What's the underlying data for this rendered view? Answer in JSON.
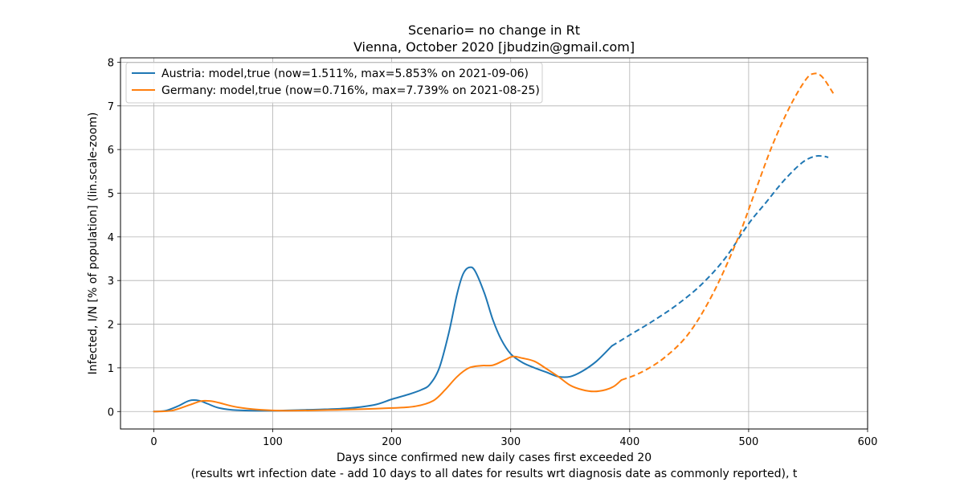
{
  "chart_data": {
    "type": "line",
    "title": "Scenario= no change in Rt",
    "subtitle": "Vienna, October 2020 [jbudzin@gmail.com]",
    "xlabel_line1": "Days since confirmed new daily cases first exceeded 20",
    "xlabel_line2": "(results wrt infection date - add 10 days to all dates for results wrt diagnosis date as commonly reported), t",
    "ylabel": "Infected, I/N [% of population] (lin.scale-zoom)",
    "xlim": [
      -28,
      600
    ],
    "ylim": [
      -0.4,
      8.1
    ],
    "xticks": [
      0,
      100,
      200,
      300,
      400,
      500,
      600
    ],
    "yticks": [
      0,
      1,
      2,
      3,
      4,
      5,
      6,
      7,
      8
    ],
    "grid": true,
    "legend_position": "top-left",
    "series": [
      {
        "name": "Austria: model,true (now=1.511%, max=5.853% on 2021-09-06)",
        "color": "#1f77b4",
        "solid": [
          [
            0,
            0
          ],
          [
            10,
            0.02
          ],
          [
            20,
            0.12
          ],
          [
            30,
            0.25
          ],
          [
            38,
            0.25
          ],
          [
            45,
            0.18
          ],
          [
            55,
            0.08
          ],
          [
            70,
            0.03
          ],
          [
            100,
            0.02
          ],
          [
            130,
            0.04
          ],
          [
            160,
            0.07
          ],
          [
            185,
            0.15
          ],
          [
            200,
            0.28
          ],
          [
            215,
            0.4
          ],
          [
            225,
            0.5
          ],
          [
            232,
            0.62
          ],
          [
            240,
            1.0
          ],
          [
            248,
            1.8
          ],
          [
            255,
            2.7
          ],
          [
            260,
            3.15
          ],
          [
            265,
            3.3
          ],
          [
            270,
            3.22
          ],
          [
            278,
            2.7
          ],
          [
            285,
            2.1
          ],
          [
            292,
            1.65
          ],
          [
            300,
            1.32
          ],
          [
            310,
            1.12
          ],
          [
            320,
            1.0
          ],
          [
            330,
            0.9
          ],
          [
            340,
            0.8
          ],
          [
            350,
            0.8
          ],
          [
            360,
            0.92
          ],
          [
            372,
            1.15
          ],
          [
            385,
            1.5
          ]
        ],
        "dashed": [
          [
            385,
            1.5
          ],
          [
            400,
            1.75
          ],
          [
            420,
            2.08
          ],
          [
            440,
            2.45
          ],
          [
            460,
            2.9
          ],
          [
            480,
            3.5
          ],
          [
            500,
            4.3
          ],
          [
            515,
            4.8
          ],
          [
            530,
            5.3
          ],
          [
            545,
            5.7
          ],
          [
            555,
            5.84
          ],
          [
            562,
            5.85
          ],
          [
            567,
            5.82
          ]
        ]
      },
      {
        "name": "Germany: model,true (now=0.716%, max=7.739% on 2021-08-25)",
        "color": "#ff7f0e",
        "solid": [
          [
            0,
            0
          ],
          [
            15,
            0.02
          ],
          [
            30,
            0.15
          ],
          [
            40,
            0.24
          ],
          [
            48,
            0.24
          ],
          [
            55,
            0.2
          ],
          [
            70,
            0.1
          ],
          [
            90,
            0.04
          ],
          [
            110,
            0.02
          ],
          [
            140,
            0.03
          ],
          [
            170,
            0.05
          ],
          [
            200,
            0.08
          ],
          [
            220,
            0.12
          ],
          [
            235,
            0.25
          ],
          [
            245,
            0.5
          ],
          [
            255,
            0.8
          ],
          [
            265,
            1.0
          ],
          [
            275,
            1.05
          ],
          [
            285,
            1.06
          ],
          [
            295,
            1.18
          ],
          [
            302,
            1.26
          ],
          [
            310,
            1.22
          ],
          [
            320,
            1.15
          ],
          [
            330,
            0.98
          ],
          [
            340,
            0.8
          ],
          [
            350,
            0.6
          ],
          [
            360,
            0.5
          ],
          [
            370,
            0.46
          ],
          [
            380,
            0.5
          ],
          [
            387,
            0.58
          ],
          [
            393,
            0.72
          ]
        ],
        "dashed": [
          [
            393,
            0.72
          ],
          [
            410,
            0.9
          ],
          [
            430,
            1.25
          ],
          [
            450,
            1.8
          ],
          [
            470,
            2.7
          ],
          [
            490,
            3.9
          ],
          [
            505,
            5.0
          ],
          [
            520,
            6.1
          ],
          [
            535,
            7.0
          ],
          [
            548,
            7.6
          ],
          [
            555,
            7.74
          ],
          [
            562,
            7.66
          ],
          [
            572,
            7.25
          ]
        ]
      }
    ]
  }
}
